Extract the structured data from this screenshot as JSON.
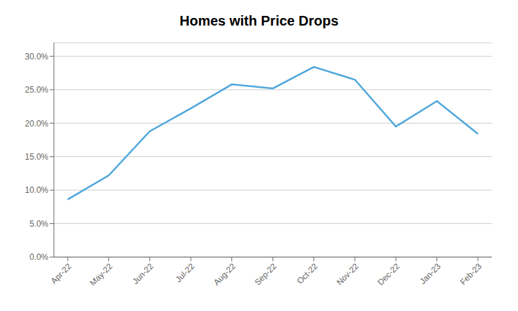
{
  "chart_data": {
    "type": "line",
    "title": "Homes with Price Drops",
    "categories": [
      "Apr-22",
      "May-22",
      "Jun-22",
      "Jul-22",
      "Aug-22",
      "Sep-22",
      "Oct-22",
      "Nov-22",
      "Dec-22",
      "Jan-23",
      "Feb-23"
    ],
    "values": [
      0.086,
      0.122,
      0.188,
      0.222,
      0.258,
      0.252,
      0.284,
      0.265,
      0.195,
      0.233,
      0.184
    ],
    "color": "#4ea6dc",
    "ylim": [
      0.0,
      0.32
    ],
    "yticks": [
      {
        "value": 0.0,
        "label": "0.0%"
      },
      {
        "value": 0.05,
        "label": "5.0%"
      },
      {
        "value": 0.1,
        "label": "10.0%"
      },
      {
        "value": 0.15,
        "label": "15.0%"
      },
      {
        "value": 0.2,
        "label": "20.0%"
      },
      {
        "value": 0.25,
        "label": "25.0%"
      },
      {
        "value": 0.3,
        "label": "30.0%"
      }
    ],
    "grid": true
  }
}
